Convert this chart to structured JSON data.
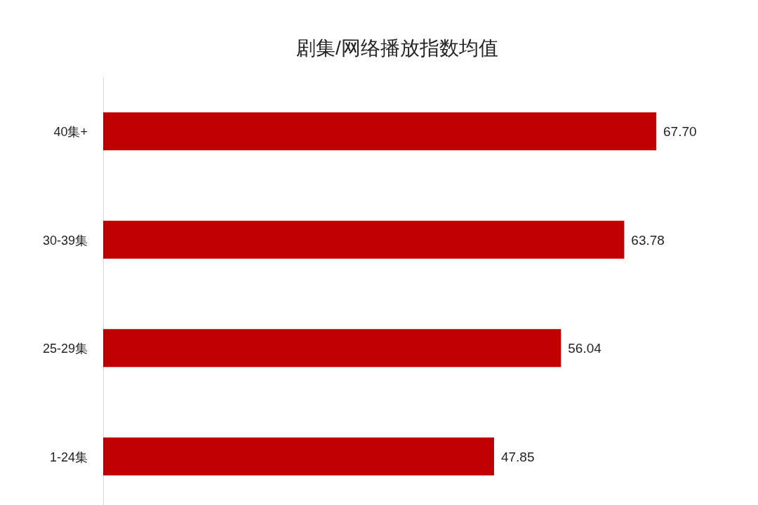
{
  "chart_data": {
    "type": "bar",
    "orientation": "horizontal",
    "title": "剧集/网络播放指数均值",
    "categories": [
      "40集+",
      "30-39集",
      "25-29集",
      "1-24集"
    ],
    "values": [
      67.7,
      63.78,
      56.04,
      47.85
    ],
    "value_labels": [
      "67.70",
      "63.78",
      "56.04",
      "47.85"
    ],
    "color": "#c00000",
    "tick_labels": "y"
  }
}
